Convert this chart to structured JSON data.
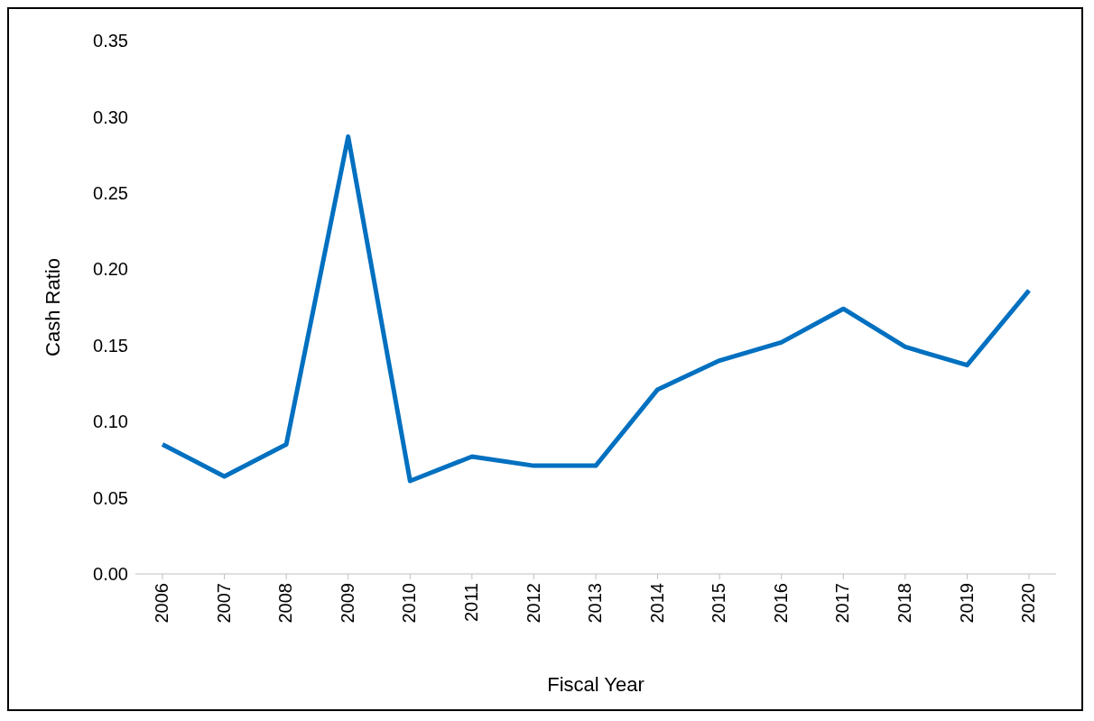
{
  "chart_data": {
    "type": "line",
    "xlabel": "Fiscal Year",
    "ylabel": "Cash Ratio",
    "categories": [
      "2006",
      "2007",
      "2008",
      "2009",
      "2010",
      "2011",
      "2012",
      "2013",
      "2014",
      "2015",
      "2016",
      "2017",
      "2018",
      "2019",
      "2020"
    ],
    "series": [
      {
        "color": "#0070c0",
        "values": [
          0.085,
          0.064,
          0.085,
          0.287,
          0.061,
          0.077,
          0.071,
          0.071,
          0.121,
          0.14,
          0.152,
          0.174,
          0.149,
          0.137,
          0.186
        ]
      }
    ],
    "ylim": [
      0,
      0.35
    ],
    "yticks": [
      {
        "value": 0,
        "label": "0.00"
      },
      {
        "value": 0.05,
        "label": "0.05"
      },
      {
        "value": 0.1,
        "label": "0.10"
      },
      {
        "value": 0.15,
        "label": "0.15"
      },
      {
        "value": 0.2,
        "label": "0.20"
      },
      {
        "value": 0.25,
        "label": "0.25"
      },
      {
        "value": 0.3,
        "label": "0.30"
      },
      {
        "value": 0.35,
        "label": "0.35"
      }
    ],
    "grid": false,
    "legend": false,
    "marker": "none",
    "line_style": "solid"
  }
}
